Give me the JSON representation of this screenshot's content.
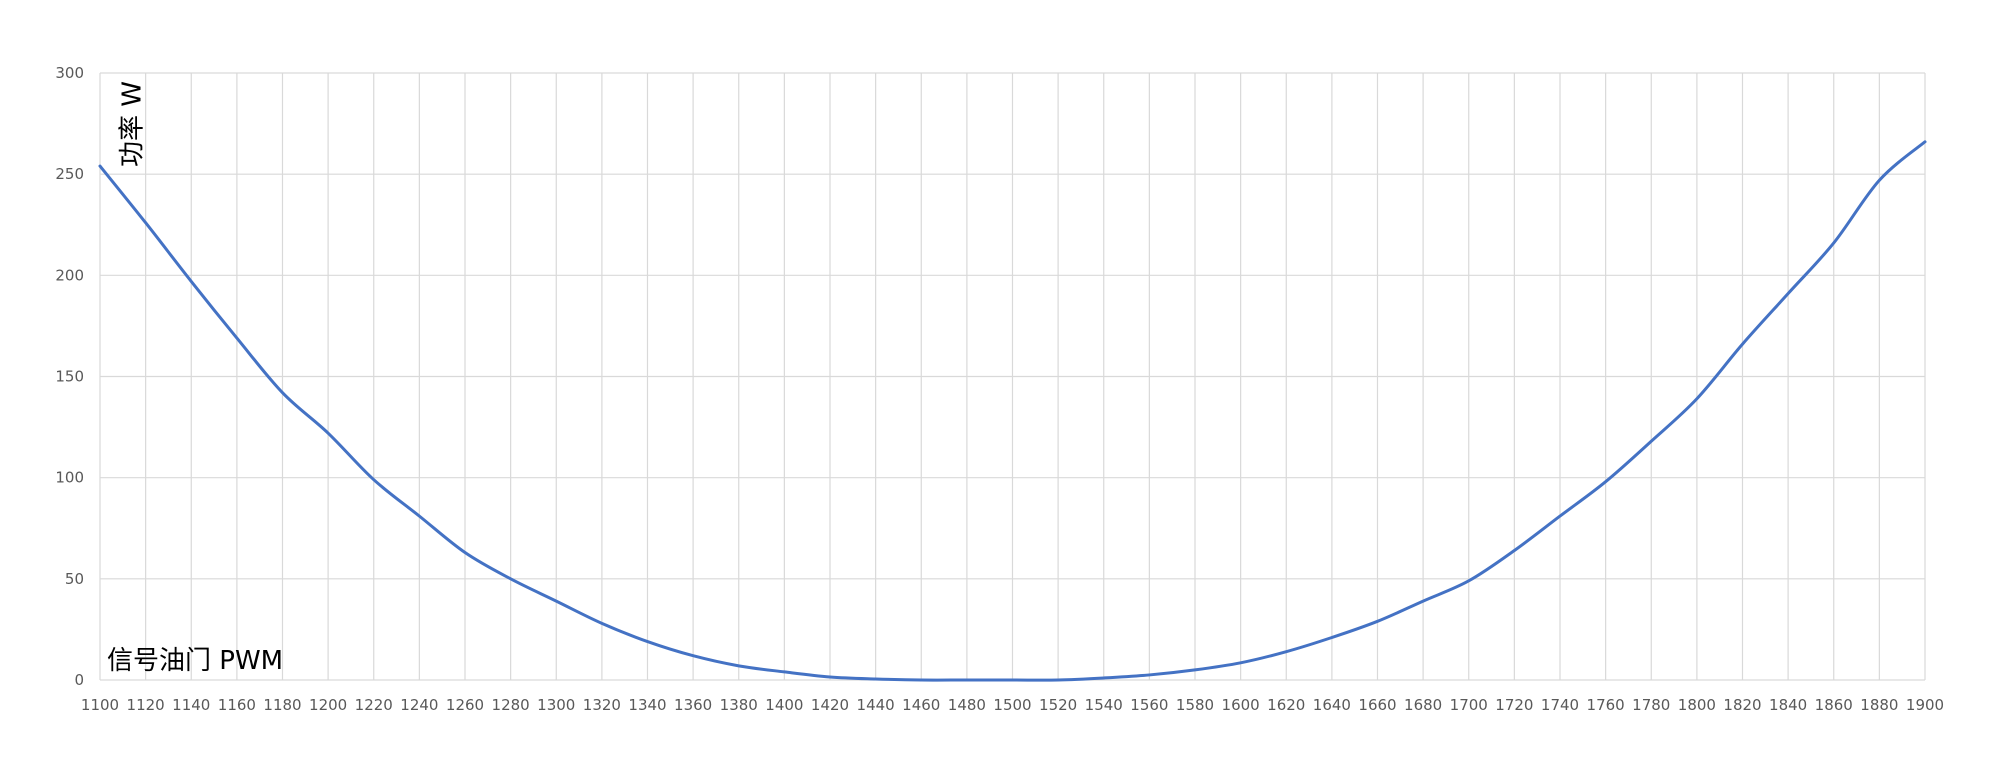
{
  "chart_data": {
    "type": "line",
    "title": "",
    "xlabel": "信号油门 PWM",
    "ylabel": "功率 W",
    "xlim": [
      1100,
      1900
    ],
    "ylim": [
      0,
      300
    ],
    "x_ticks": [
      1100,
      1120,
      1140,
      1160,
      1180,
      1200,
      1220,
      1240,
      1260,
      1280,
      1300,
      1320,
      1340,
      1360,
      1380,
      1400,
      1420,
      1440,
      1460,
      1480,
      1500,
      1520,
      1540,
      1560,
      1580,
      1600,
      1620,
      1640,
      1660,
      1680,
      1700,
      1720,
      1740,
      1760,
      1780,
      1800,
      1820,
      1840,
      1860,
      1880,
      1900
    ],
    "y_ticks": [
      0,
      50,
      100,
      150,
      200,
      250,
      300
    ],
    "grid": true,
    "legend": "none",
    "line_color": "#4472C4",
    "grid_color": "#d9d9d9",
    "series": [
      {
        "x": [
          1100,
          1120,
          1140,
          1160,
          1180,
          1200,
          1220,
          1240,
          1260,
          1280,
          1300,
          1320,
          1340,
          1360,
          1380,
          1400,
          1420,
          1440,
          1460,
          1480,
          1500,
          1520,
          1540,
          1560,
          1580,
          1600,
          1620,
          1640,
          1660,
          1680,
          1700,
          1720,
          1740,
          1760,
          1780,
          1800,
          1820,
          1840,
          1860,
          1880,
          1900
        ],
        "values": [
          254,
          226,
          197,
          169,
          142,
          122,
          99,
          81,
          63,
          50,
          39,
          28,
          19,
          12,
          7,
          4,
          1.5,
          0.5,
          0,
          0,
          0,
          0,
          1,
          2.5,
          5,
          8.5,
          14,
          21,
          29,
          39,
          49,
          64,
          81,
          98,
          118,
          139,
          166,
          191,
          216,
          247,
          266
        ]
      }
    ]
  }
}
